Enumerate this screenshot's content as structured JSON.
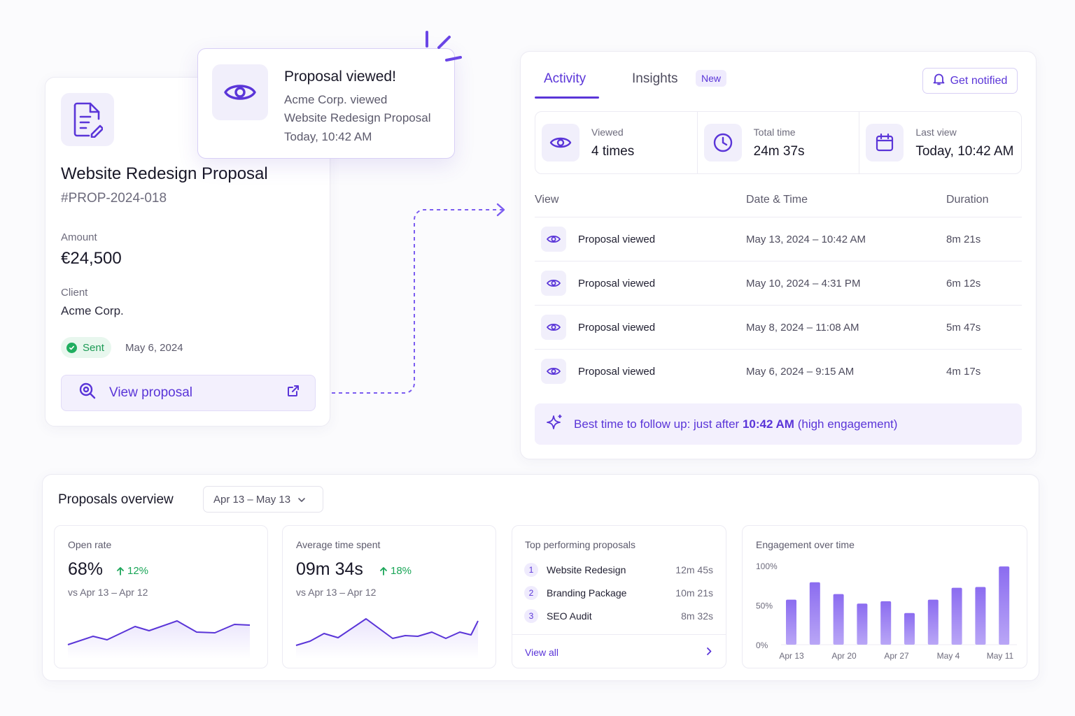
{
  "notification": {
    "title": "Proposal viewed!",
    "line1": "Acme Corp. viewed",
    "line2": "Website Redesign Proposal",
    "line3": "Today, 10:42 AM"
  },
  "proposal": {
    "title": "Website Redesign Proposal",
    "id": "#PROP-2024-018",
    "amount_label": "Amount",
    "amount": "€24,500",
    "client_label": "Client",
    "client": "Acme Corp.",
    "status": "Sent",
    "sent_date": "May 6, 2024",
    "view_button": "View proposal"
  },
  "activity": {
    "tabs": [
      "Activity",
      "Insights"
    ],
    "new_badge": "New",
    "notify_button": "Get notified",
    "stats": [
      {
        "label": "Viewed",
        "value": "4 times",
        "icon": "eye-icon"
      },
      {
        "label": "Total time",
        "value": "24m 37s",
        "icon": "clock-icon"
      },
      {
        "label": "Last view",
        "value": "Today, 10:42 AM",
        "icon": "calendar-icon"
      }
    ],
    "columns": [
      "View",
      "Date & Time",
      "Duration"
    ],
    "rows": [
      {
        "name": "Proposal viewed",
        "date": "May 13, 2024 – 10:42 AM",
        "duration": "8m 21s"
      },
      {
        "name": "Proposal viewed",
        "date": "May 10, 2024 – 4:31 PM",
        "duration": "6m 12s"
      },
      {
        "name": "Proposal viewed",
        "date": "May 8, 2024 – 11:08 AM",
        "duration": "5m 47s"
      },
      {
        "name": "Proposal viewed",
        "date": "May 6, 2024 – 9:15 AM",
        "duration": "4m 17s"
      }
    ],
    "tip_prefix": "Best time to follow up: just after",
    "tip_time": "10:42 AM",
    "tip_suffix": "(high engagement)"
  },
  "overview": {
    "title": "Proposals overview",
    "date_range": "Apr 13 – May 13",
    "open_rate": {
      "title": "Open rate",
      "value": "68%",
      "delta": "12%",
      "vs": "vs Apr 13 – Apr 12"
    },
    "avg_time": {
      "title": "Average time spent",
      "value": "09m 34s",
      "delta": "18%",
      "vs": "vs Apr 13 – Apr 12"
    },
    "top": {
      "title": "Top performing proposals",
      "items": [
        {
          "rank": "1",
          "name": "Website Redesign",
          "time": "12m 45s"
        },
        {
          "rank": "2",
          "name": "Branding Package",
          "time": "10m 21s"
        },
        {
          "rank": "3",
          "name": "SEO Audit",
          "time": "8m 32s"
        }
      ],
      "view_all": "View all"
    },
    "engagement": {
      "title": "Engagement over time"
    }
  },
  "colors": {
    "accent": "#5a35d8",
    "success": "#1aa658",
    "bar": "#9b7ff0"
  },
  "chart_data": {
    "type": "bar",
    "title": "Engagement over time",
    "yticks": [
      "100%",
      "50%",
      "0%"
    ],
    "ylim": [
      0,
      100
    ],
    "xticks": [
      "Apr 13",
      "Apr 20",
      "Apr 27",
      "May 4",
      "May 11"
    ],
    "values": [
      57,
      79,
      64,
      52,
      55,
      40,
      57,
      72,
      73,
      99
    ]
  }
}
